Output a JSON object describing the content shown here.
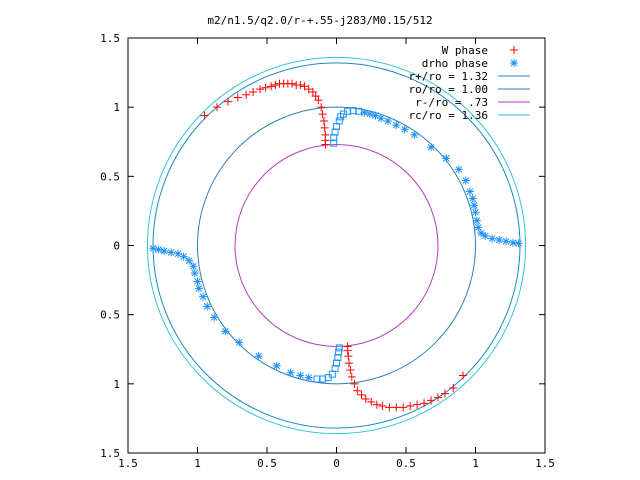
{
  "chart_data": {
    "type": "scatter",
    "title": "m2/n1.5/q2.0/r-+.55-j283/M0.15/512",
    "xlabel": "",
    "ylabel": "",
    "xlim": [
      -1.5,
      1.5
    ],
    "ylim": [
      -1.5,
      1.5
    ],
    "x_ticks": [
      -1.5,
      -1,
      -0.5,
      0,
      0.5,
      1,
      1.5
    ],
    "y_ticks": [
      -1.5,
      -1,
      -0.5,
      0,
      0.5,
      1,
      1.5
    ],
    "x_tick_labels": [
      "1.5",
      "1",
      "0.5",
      "0",
      "0.5",
      "1",
      "1.5"
    ],
    "y_tick_labels": [
      "1.5",
      "1",
      "0.5",
      "0",
      "0.5",
      "1",
      "1.5"
    ],
    "grid": false,
    "legend_position": "top-right",
    "series": [
      {
        "name": "W phase",
        "kind": "points",
        "marker": "plus",
        "color": "#ff0000",
        "points": [
          [
            -0.95,
            0.94
          ],
          [
            -0.86,
            1.0
          ],
          [
            -0.78,
            1.04
          ],
          [
            -0.71,
            1.07
          ],
          [
            -0.65,
            1.09
          ],
          [
            -0.6,
            1.11
          ],
          [
            -0.55,
            1.13
          ],
          [
            -0.51,
            1.14
          ],
          [
            -0.47,
            1.15
          ],
          [
            -0.44,
            1.16
          ],
          [
            -0.41,
            1.17
          ],
          [
            -0.38,
            1.17
          ],
          [
            -0.35,
            1.17
          ],
          [
            -0.32,
            1.17
          ],
          [
            -0.29,
            1.16
          ],
          [
            -0.26,
            1.16
          ],
          [
            -0.23,
            1.15
          ],
          [
            -0.2,
            1.13
          ],
          [
            -0.17,
            1.11
          ],
          [
            -0.15,
            1.08
          ],
          [
            -0.13,
            1.05
          ],
          [
            -0.11,
            1.0
          ],
          [
            -0.1,
            0.95
          ],
          [
            -0.09,
            0.9
          ],
          [
            -0.085,
            0.85
          ],
          [
            -0.08,
            0.8
          ],
          [
            -0.08,
            0.76
          ],
          [
            -0.08,
            0.73
          ],
          [
            0.08,
            -0.73
          ],
          [
            0.08,
            -0.76
          ],
          [
            0.085,
            -0.8
          ],
          [
            0.09,
            -0.85
          ],
          [
            0.1,
            -0.9
          ],
          [
            0.11,
            -0.95
          ],
          [
            0.13,
            -1.0
          ],
          [
            0.15,
            -1.05
          ],
          [
            0.18,
            -1.08
          ],
          [
            0.21,
            -1.11
          ],
          [
            0.25,
            -1.13
          ],
          [
            0.29,
            -1.15
          ],
          [
            0.33,
            -1.16
          ],
          [
            0.38,
            -1.17
          ],
          [
            0.43,
            -1.17
          ],
          [
            0.48,
            -1.17
          ],
          [
            0.53,
            -1.16
          ],
          [
            0.58,
            -1.15
          ],
          [
            0.63,
            -1.14
          ],
          [
            0.68,
            -1.12
          ],
          [
            0.73,
            -1.1
          ],
          [
            0.78,
            -1.07
          ],
          [
            0.84,
            -1.03
          ],
          [
            0.91,
            -0.94
          ]
        ]
      },
      {
        "name": "drho phase",
        "kind": "points",
        "marker": "asterisk-square",
        "color": "#1e90ff",
        "points": [
          [
            -0.02,
            0.74
          ],
          [
            -0.02,
            0.78
          ],
          [
            -0.01,
            0.82
          ],
          [
            0.0,
            0.86
          ],
          [
            0.02,
            0.9
          ],
          [
            0.03,
            0.93
          ],
          [
            0.05,
            0.95
          ],
          [
            0.08,
            0.97
          ],
          [
            0.12,
            0.975
          ],
          [
            0.16,
            0.97
          ],
          [
            0.2,
            0.96
          ],
          [
            0.24,
            0.95
          ],
          [
            0.28,
            0.94
          ],
          [
            0.32,
            0.92
          ],
          [
            0.37,
            0.9
          ],
          [
            0.43,
            0.87
          ],
          [
            0.49,
            0.84
          ],
          [
            0.56,
            0.8
          ],
          [
            0.68,
            0.71
          ],
          [
            0.79,
            0.63
          ],
          [
            0.88,
            0.55
          ],
          [
            0.93,
            0.47
          ],
          [
            0.96,
            0.39
          ],
          [
            0.98,
            0.34
          ],
          [
            0.99,
            0.29
          ],
          [
            1.0,
            0.24
          ],
          [
            1.01,
            0.18
          ],
          [
            1.02,
            0.13
          ],
          [
            1.04,
            0.09
          ],
          [
            1.07,
            0.07
          ],
          [
            1.12,
            0.05
          ],
          [
            1.17,
            0.04
          ],
          [
            1.22,
            0.03
          ],
          [
            1.27,
            0.02
          ],
          [
            1.31,
            0.015
          ],
          [
            -1.32,
            -0.02
          ],
          [
            -1.28,
            -0.03
          ],
          [
            -1.24,
            -0.04
          ],
          [
            -1.19,
            -0.05
          ],
          [
            -1.14,
            -0.06
          ],
          [
            -1.1,
            -0.08
          ],
          [
            -1.06,
            -0.11
          ],
          [
            -1.03,
            -0.15
          ],
          [
            -1.02,
            -0.2
          ],
          [
            -1.0,
            -0.26
          ],
          [
            -0.99,
            -0.31
          ],
          [
            -0.96,
            -0.37
          ],
          [
            -0.93,
            -0.44
          ],
          [
            -0.88,
            -0.52
          ],
          [
            -0.8,
            -0.62
          ],
          [
            -0.7,
            -0.7
          ],
          [
            -0.56,
            -0.8
          ],
          [
            -0.43,
            -0.87
          ],
          [
            -0.33,
            -0.92
          ],
          [
            -0.26,
            -0.94
          ],
          [
            -0.2,
            -0.955
          ],
          [
            -0.14,
            -0.965
          ],
          [
            -0.1,
            -0.965
          ],
          [
            -0.06,
            -0.955
          ],
          [
            -0.03,
            -0.93
          ],
          [
            -0.01,
            -0.89
          ],
          [
            0.0,
            -0.85
          ],
          [
            0.01,
            -0.81
          ],
          [
            0.015,
            -0.77
          ],
          [
            0.02,
            -0.74
          ]
        ]
      },
      {
        "name": "r+/ro = 1.32",
        "kind": "circle",
        "radius": 1.32,
        "color": "#1a8ab8"
      },
      {
        "name": "ro/ro = 1.00",
        "kind": "circle",
        "radius": 1.0,
        "color": "#2c7fb8"
      },
      {
        "name": "r-/ro =  .73",
        "kind": "circle",
        "radius": 0.73,
        "color": "#b23fc0"
      },
      {
        "name": "rc/ro = 1.36",
        "kind": "circle",
        "radius": 1.36,
        "color": "#2fc4d6"
      }
    ]
  }
}
